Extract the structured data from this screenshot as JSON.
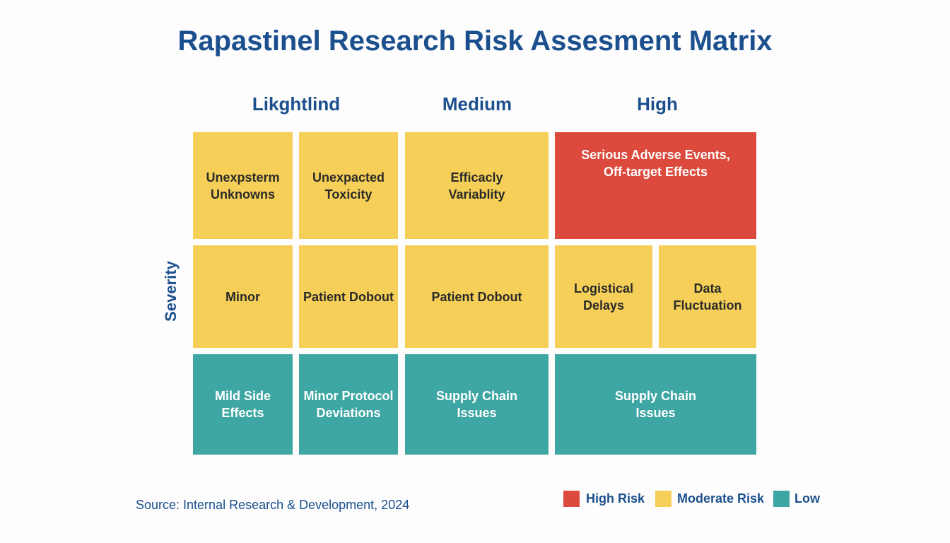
{
  "header": {
    "title": "Rapastinel Research Risk Assesment Matrix"
  },
  "matrix": {
    "columns": [
      "Likghtlind",
      "Medium",
      "High"
    ],
    "row_label": "Severity",
    "rows": [
      [
        {
          "lines": [
            "Unexpsterm",
            "Unknowns"
          ]
        },
        {
          "lines": [
            "Unexpacted",
            "Toxicity"
          ]
        },
        {
          "lines": [
            "Efficacly",
            "Variablity"
          ]
        },
        {
          "lines": [
            "Serious Adverse Events,",
            "Off-target Effects"
          ]
        }
      ],
      [
        {
          "lines": [
            "Minor"
          ]
        },
        {
          "lines": [
            "Patient Dobout"
          ]
        },
        {
          "lines": [
            "Patient Dobout"
          ]
        },
        {
          "lines": [
            "Logistical",
            "Delays"
          ]
        },
        {
          "lines": [
            "Data",
            "Fluctuation"
          ]
        }
      ],
      [
        {
          "lines": [
            "Mild Side",
            "Effects"
          ]
        },
        {
          "lines": [
            "Minor Protocol",
            "Deviations"
          ]
        },
        {
          "lines": [
            "Supply Chain",
            "Issues"
          ]
        },
        {
          "lines": [
            "Supply Chain",
            "Issues"
          ]
        }
      ]
    ]
  },
  "legend": [
    "High Risk",
    "Moderate Risk",
    "Low"
  ],
  "footer": {
    "source": "Source: Internal Research & Development, 2024"
  }
}
